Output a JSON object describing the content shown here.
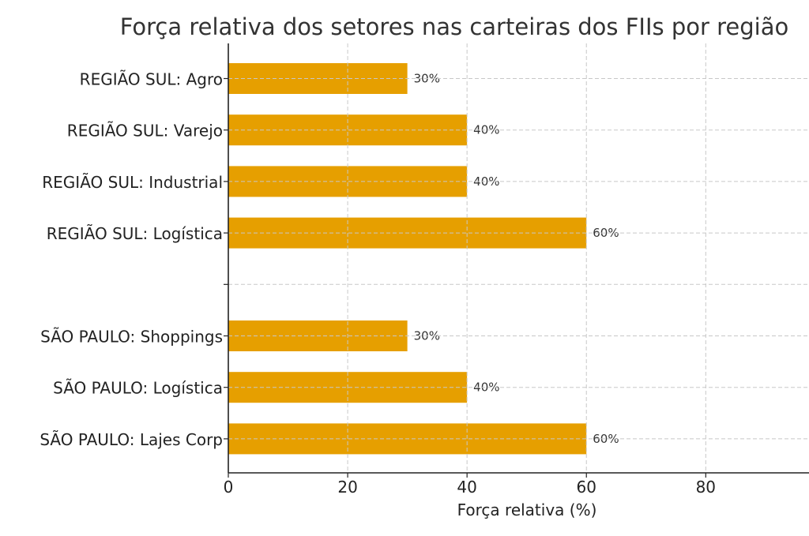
{
  "chart_data": {
    "type": "bar",
    "orientation": "horizontal",
    "title": "Força relativa dos setores nas carteiras dos FIIs por região",
    "xlabel": "Força relativa (%)",
    "ylabel": "",
    "categories": [
      "REGIÃO SUL: Agro",
      "REGIÃO SUL: Varejo",
      "REGIÃO SUL: Industrial",
      "REGIÃO SUL: Logística",
      "",
      "SÃO PAULO: Shoppings",
      "SÃO PAULO: Logística",
      "SÃO PAULO: Lajes Corp"
    ],
    "values": [
      30,
      40,
      40,
      60,
      null,
      30,
      40,
      60
    ],
    "data_labels": [
      "30%",
      "40%",
      "40%",
      "60%",
      "",
      "30%",
      "40%",
      "60%"
    ],
    "xticks": [
      0,
      20,
      40,
      60,
      80
    ],
    "xtick_labels": [
      "0",
      "20",
      "40",
      "60",
      "80"
    ],
    "xlim": [
      0,
      97.3
    ],
    "grid": true,
    "bar_color": "#E69F00"
  }
}
